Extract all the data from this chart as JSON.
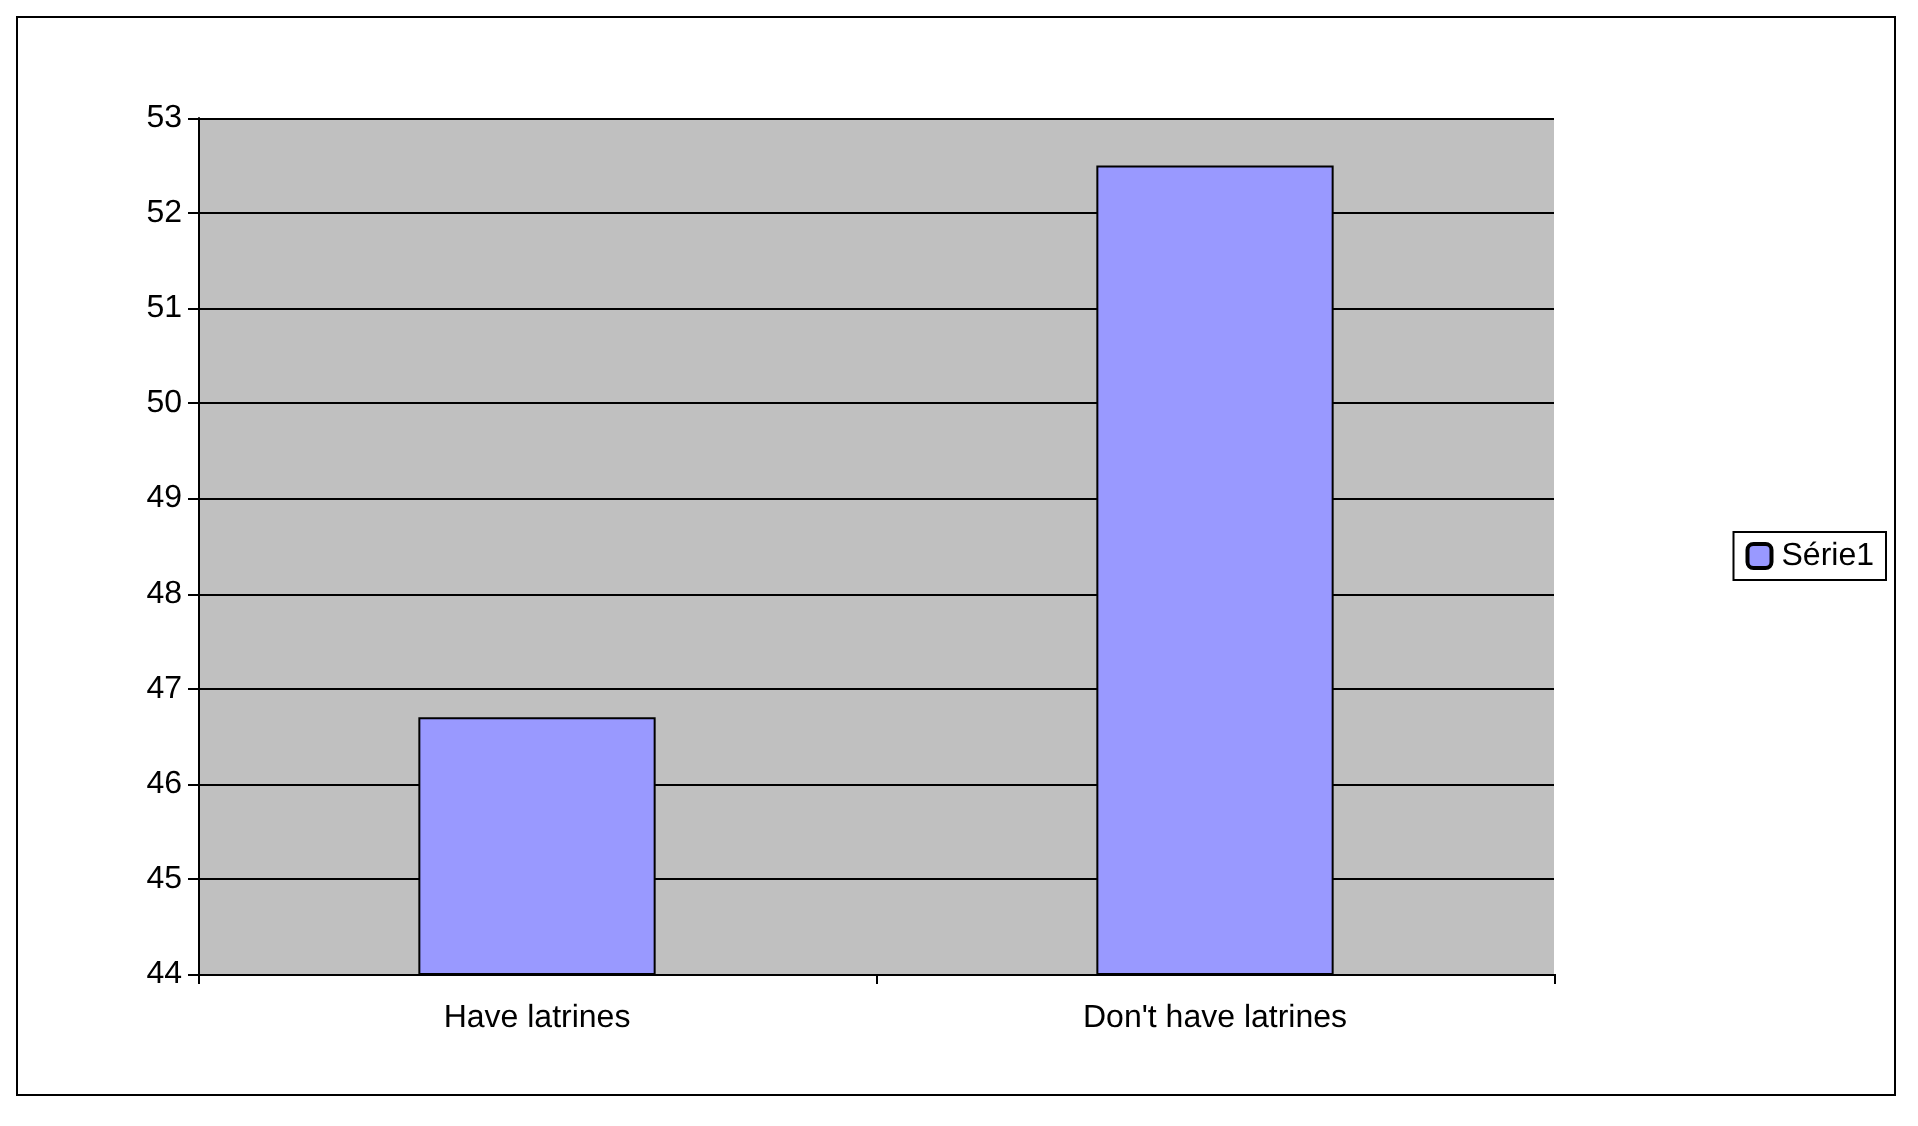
{
  "chart_data": {
    "type": "bar",
    "categories": [
      "Have latrines",
      "Don't have latrines"
    ],
    "series": [
      {
        "name": "Série1",
        "color": "#9999ff",
        "values": [
          46.7,
          52.5
        ]
      }
    ],
    "ylim": [
      44,
      53
    ],
    "yticks": [
      44,
      45,
      46,
      47,
      48,
      49,
      50,
      51,
      52,
      53
    ],
    "grid": "y",
    "legend": "right"
  }
}
